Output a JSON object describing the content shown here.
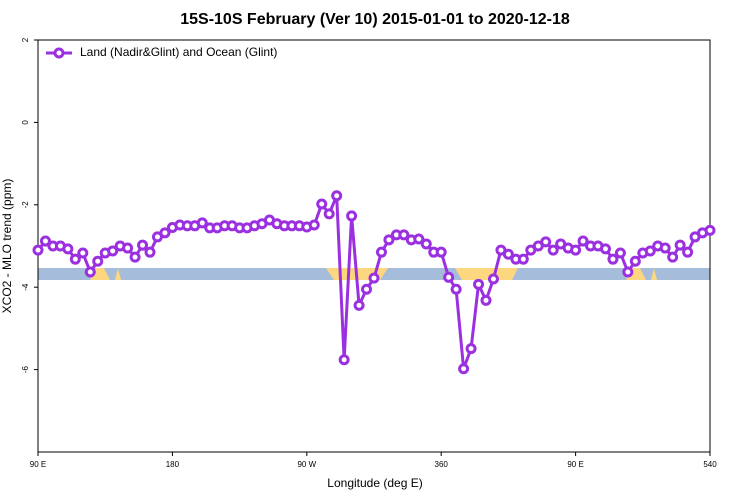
{
  "chart_data": {
    "type": "line",
    "title": "15S-10S February (Ver 10)   2015-01-01 to 2020-12-18",
    "xlabel": "Longitude (deg E)",
    "ylabel": "XCO2 - MLO trend (ppm)",
    "x": [
      90,
      95,
      100,
      105,
      110,
      115,
      120,
      125,
      130,
      135,
      140,
      145,
      150,
      155,
      160,
      165,
      170,
      175,
      180,
      185,
      190,
      195,
      200,
      205,
      210,
      215,
      220,
      225,
      230,
      235,
      240,
      245,
      250,
      255,
      260,
      265,
      270,
      275,
      280,
      285,
      290,
      295,
      300,
      305,
      310,
      315,
      320,
      325,
      330,
      335,
      340,
      345,
      350,
      355,
      360,
      365,
      370,
      375,
      380,
      385,
      390,
      395,
      400,
      405,
      410,
      415,
      420,
      425,
      430,
      435,
      440,
      445,
      450,
      455,
      460,
      465,
      470,
      475,
      480,
      485,
      490,
      495,
      500,
      505,
      510,
      515,
      520,
      525,
      530,
      535,
      540
    ],
    "series": [
      {
        "name": "Land (Nadir&Glint) and Ocean (Glint)",
        "color": "#9b30e0",
        "values": [
          -3.1,
          -2.88,
          -3.0,
          -3.0,
          -3.07,
          -3.32,
          -3.17,
          -3.63,
          -3.37,
          -3.17,
          -3.12,
          -3.0,
          -3.05,
          -3.27,
          -2.98,
          -3.15,
          -2.78,
          -2.68,
          -2.55,
          -2.49,
          -2.51,
          -2.51,
          -2.44,
          -2.56,
          -2.56,
          -2.51,
          -2.51,
          -2.56,
          -2.56,
          -2.51,
          -2.46,
          -2.37,
          -2.46,
          -2.51,
          -2.51,
          -2.51,
          -2.54,
          -2.49,
          -1.98,
          -2.22,
          -1.78,
          -5.76,
          -2.27,
          -4.44,
          -4.05,
          -3.78,
          -3.15,
          -2.85,
          -2.73,
          -2.73,
          -2.85,
          -2.83,
          -2.95,
          -3.15,
          -3.15,
          -3.76,
          -4.05,
          -5.98,
          -5.49,
          -3.93,
          -4.32,
          -3.8,
          -3.1,
          -3.2,
          -3.32,
          -3.32,
          -3.1,
          -3.0,
          -2.9,
          -3.1,
          -2.95,
          -3.05,
          -3.1,
          -2.88,
          -3.0,
          -3.0,
          -3.07,
          -3.32,
          -3.17,
          -3.63,
          -3.37,
          -3.17,
          -3.12,
          -3.0,
          -3.05,
          -3.27,
          -2.98,
          -3.15,
          -2.78,
          -2.68,
          -2.62
        ]
      }
    ],
    "xlim": [
      90,
      540
    ],
    "xticks": [
      {
        "value": 90,
        "label": "90 E"
      },
      180,
      {
        "value": 270,
        "label": "90 W"
      },
      360,
      {
        "value": 450,
        "label": "90 E"
      },
      540
    ],
    "ylim": [
      -8,
      2
    ],
    "yticks": [
      -6,
      -4,
      -2,
      0,
      2
    ],
    "legend": "top-left"
  }
}
